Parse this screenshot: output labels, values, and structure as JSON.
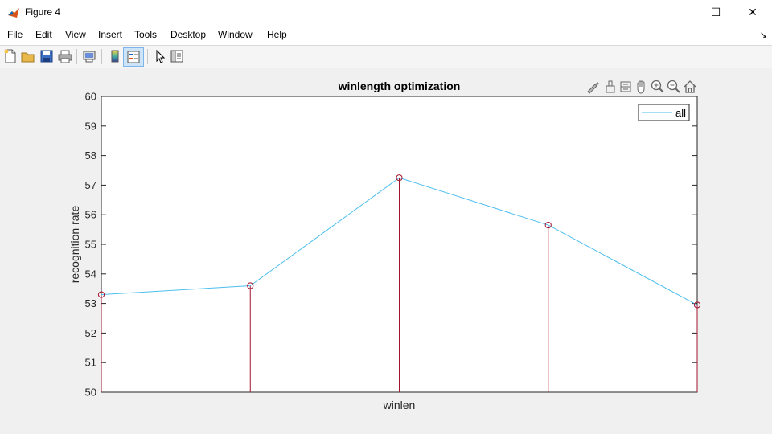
{
  "window": {
    "title": "Figure 4",
    "controls": {
      "minimize": "—",
      "maximize": "☐",
      "close": "✕"
    }
  },
  "menu": {
    "items": [
      "File",
      "Edit",
      "View",
      "Insert",
      "Tools",
      "Desktop",
      "Window",
      "Help"
    ],
    "dock_icon": "↘"
  },
  "toolbar": {
    "icons": [
      "new-figure-icon",
      "open-file-icon",
      "save-icon",
      "print-icon",
      "print-preview-icon",
      "colorbar-icon",
      "legend-icon",
      "pointer-icon",
      "property-editor-icon"
    ]
  },
  "axes_toolbar": {
    "icons": [
      "brush-icon",
      "data-tips-icon",
      "link-icon",
      "pan-icon",
      "zoom-in-icon",
      "zoom-out-icon",
      "home-icon"
    ]
  },
  "colors": {
    "line": "#4dbeee",
    "stem": "#a2142f",
    "marker": "#a2142f"
  },
  "chart_data": {
    "type": "line",
    "title": "winlength optimization",
    "xlabel": "winlen",
    "ylabel": "recognition rate",
    "x": [
      1,
      2,
      3,
      4,
      5
    ],
    "xlim": [
      1,
      5
    ],
    "ylim": [
      50,
      60
    ],
    "yticks": [
      50,
      51,
      52,
      53,
      54,
      55,
      56,
      57,
      58,
      59,
      60
    ],
    "series": [
      {
        "name": "all",
        "values": [
          53.3,
          53.6,
          57.25,
          55.65,
          52.95
        ]
      }
    ],
    "stem_values": [
      53.3,
      53.6,
      57.25,
      55.65,
      52.95
    ],
    "legend": {
      "entries": [
        "all"
      ],
      "position": "top-right"
    },
    "grid": false
  }
}
